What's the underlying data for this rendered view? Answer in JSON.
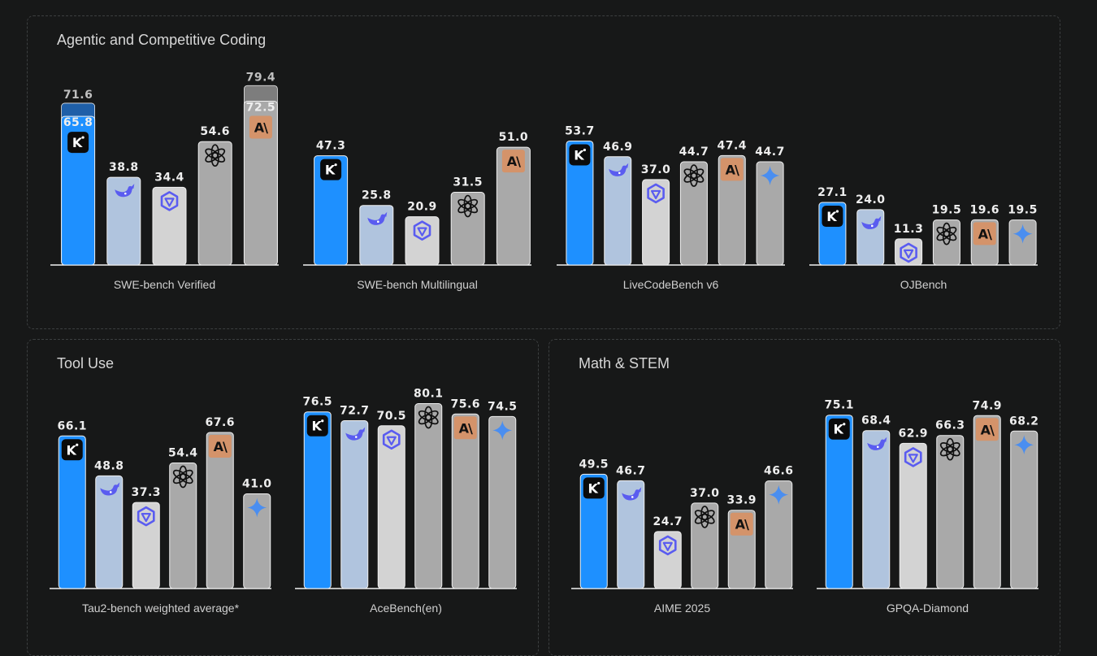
{
  "colors": {
    "kimi": "#1e90ff",
    "deepseek": "#b0c4de",
    "qwen": "#d3d3d3",
    "openai": "#a9a9a9",
    "anthropic": "#a9a9a9",
    "gemini": "#a9a9a9",
    "anthropic_badge": "#d4936a",
    "icon_purple": "#5a5cf0",
    "gemini_icon": "#4a8ef0"
  },
  "sections": [
    {
      "title": "Agentic and Competitive Coding"
    },
    {
      "title": "Tool Use"
    },
    {
      "title": "Math & STEM"
    }
  ],
  "chart_data": [
    {
      "type": "bar",
      "section": 0,
      "title": "",
      "xlabel": "SWE-bench Verified",
      "ylim": [
        0,
        85
      ],
      "bars": [
        {
          "model": "kimi",
          "icon": "kimi-k-icon",
          "value": 65.8,
          "label": "65.8",
          "extra_value": 71.6,
          "extra_label": "71.6"
        },
        {
          "model": "deepseek",
          "icon": "deepseek-whale-icon",
          "value": 38.8,
          "label": "38.8"
        },
        {
          "model": "qwen",
          "icon": "qwen-icon",
          "value": 34.4,
          "label": "34.4"
        },
        {
          "model": "openai",
          "icon": "openai-icon",
          "value": 54.6,
          "label": "54.6"
        },
        {
          "model": "anthropic",
          "icon": "anthropic-icon",
          "value": 72.5,
          "label": "72.5",
          "extra_value": 79.4,
          "extra_label": "79.4"
        }
      ]
    },
    {
      "type": "bar",
      "section": 0,
      "title": "",
      "xlabel": "SWE-bench Multilingual",
      "ylim": [
        0,
        85
      ],
      "bars": [
        {
          "model": "kimi",
          "icon": "kimi-k-icon",
          "value": 47.3,
          "label": "47.3"
        },
        {
          "model": "deepseek",
          "icon": "deepseek-whale-icon",
          "value": 25.8,
          "label": "25.8"
        },
        {
          "model": "qwen",
          "icon": "qwen-icon",
          "value": 20.9,
          "label": "20.9"
        },
        {
          "model": "openai",
          "icon": "openai-icon",
          "value": 31.5,
          "label": "31.5"
        },
        {
          "model": "anthropic",
          "icon": "anthropic-icon",
          "value": 51.0,
          "label": "51.0"
        }
      ]
    },
    {
      "type": "bar",
      "section": 0,
      "title": "",
      "xlabel": "LiveCodeBench v6",
      "ylim": [
        0,
        85
      ],
      "bars": [
        {
          "model": "kimi",
          "icon": "kimi-k-icon",
          "value": 53.7,
          "label": "53.7"
        },
        {
          "model": "deepseek",
          "icon": "deepseek-whale-icon",
          "value": 46.9,
          "label": "46.9"
        },
        {
          "model": "qwen",
          "icon": "qwen-icon",
          "value": 37.0,
          "label": "37.0"
        },
        {
          "model": "openai",
          "icon": "openai-icon",
          "value": 44.7,
          "label": "44.7"
        },
        {
          "model": "anthropic",
          "icon": "anthropic-icon",
          "value": 47.4,
          "label": "47.4"
        },
        {
          "model": "gemini",
          "icon": "gemini-sparkle-icon",
          "value": 44.7,
          "label": "44.7"
        }
      ]
    },
    {
      "type": "bar",
      "section": 0,
      "title": "",
      "xlabel": "OJBench",
      "ylim": [
        0,
        85
      ],
      "bars": [
        {
          "model": "kimi",
          "icon": "kimi-k-icon",
          "value": 27.1,
          "label": "27.1"
        },
        {
          "model": "deepseek",
          "icon": "deepseek-whale-icon",
          "value": 24.0,
          "label": "24.0"
        },
        {
          "model": "qwen",
          "icon": "qwen-icon",
          "value": 11.3,
          "label": "11.3"
        },
        {
          "model": "openai",
          "icon": "openai-icon",
          "value": 19.5,
          "label": "19.5"
        },
        {
          "model": "anthropic",
          "icon": "anthropic-icon",
          "value": 19.6,
          "label": "19.6"
        },
        {
          "model": "gemini",
          "icon": "gemini-sparkle-icon",
          "value": 19.5,
          "label": "19.5"
        }
      ]
    },
    {
      "type": "bar",
      "section": 1,
      "title": "",
      "xlabel": "Tau2-bench weighted average*",
      "ylim": [
        0,
        85
      ],
      "bars": [
        {
          "model": "kimi",
          "icon": "kimi-k-icon",
          "value": 66.1,
          "label": "66.1"
        },
        {
          "model": "deepseek",
          "icon": "deepseek-whale-icon",
          "value": 48.8,
          "label": "48.8"
        },
        {
          "model": "qwen",
          "icon": "qwen-icon",
          "value": 37.3,
          "label": "37.3"
        },
        {
          "model": "openai",
          "icon": "openai-icon",
          "value": 54.4,
          "label": "54.4"
        },
        {
          "model": "anthropic",
          "icon": "anthropic-icon",
          "value": 67.6,
          "label": "67.6"
        },
        {
          "model": "gemini",
          "icon": "gemini-sparkle-icon",
          "value": 41.0,
          "label": "41.0"
        }
      ]
    },
    {
      "type": "bar",
      "section": 1,
      "title": "",
      "xlabel": "AceBench(en)",
      "ylim": [
        0,
        85
      ],
      "bars": [
        {
          "model": "kimi",
          "icon": "kimi-k-icon",
          "value": 76.5,
          "label": "76.5"
        },
        {
          "model": "deepseek",
          "icon": "deepseek-whale-icon",
          "value": 72.7,
          "label": "72.7"
        },
        {
          "model": "qwen",
          "icon": "qwen-icon",
          "value": 70.5,
          "label": "70.5"
        },
        {
          "model": "openai",
          "icon": "openai-icon",
          "value": 80.1,
          "label": "80.1"
        },
        {
          "model": "anthropic",
          "icon": "anthropic-icon",
          "value": 75.6,
          "label": "75.6"
        },
        {
          "model": "gemini",
          "icon": "gemini-sparkle-icon",
          "value": 74.5,
          "label": "74.5"
        }
      ]
    },
    {
      "type": "bar",
      "section": 2,
      "title": "",
      "xlabel": "AIME 2025",
      "ylim": [
        0,
        85
      ],
      "bars": [
        {
          "model": "kimi",
          "icon": "kimi-k-icon",
          "value": 49.5,
          "label": "49.5"
        },
        {
          "model": "deepseek",
          "icon": "deepseek-whale-icon",
          "value": 46.7,
          "label": "46.7"
        },
        {
          "model": "qwen",
          "icon": "qwen-icon",
          "value": 24.7,
          "label": "24.7"
        },
        {
          "model": "openai",
          "icon": "openai-icon",
          "value": 37.0,
          "label": "37.0"
        },
        {
          "model": "anthropic",
          "icon": "anthropic-icon",
          "value": 33.9,
          "label": "33.9"
        },
        {
          "model": "gemini",
          "icon": "gemini-sparkle-icon",
          "value": 46.6,
          "label": "46.6"
        }
      ]
    },
    {
      "type": "bar",
      "section": 2,
      "title": "",
      "xlabel": "GPQA-Diamond",
      "ylim": [
        0,
        85
      ],
      "bars": [
        {
          "model": "kimi",
          "icon": "kimi-k-icon",
          "value": 75.1,
          "label": "75.1"
        },
        {
          "model": "deepseek",
          "icon": "deepseek-whale-icon",
          "value": 68.4,
          "label": "68.4"
        },
        {
          "model": "qwen",
          "icon": "qwen-icon",
          "value": 62.9,
          "label": "62.9"
        },
        {
          "model": "openai",
          "icon": "openai-icon",
          "value": 66.3,
          "label": "66.3"
        },
        {
          "model": "anthropic",
          "icon": "anthropic-icon",
          "value": 74.9,
          "label": "74.9"
        },
        {
          "model": "gemini",
          "icon": "gemini-sparkle-icon",
          "value": 68.2,
          "label": "68.2"
        }
      ]
    }
  ]
}
